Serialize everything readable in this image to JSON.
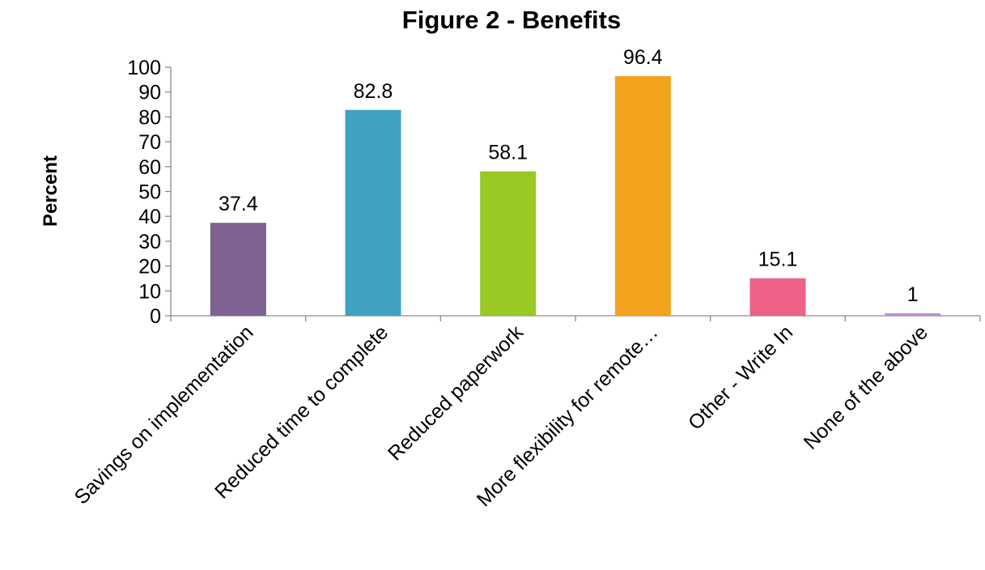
{
  "chart_data": {
    "type": "bar",
    "title": "Figure 2 - Benefits",
    "xlabel": "",
    "ylabel": "Percent",
    "ylim": [
      0,
      100
    ],
    "yticks": [
      0,
      10,
      20,
      30,
      40,
      50,
      60,
      70,
      80,
      90,
      100
    ],
    "grid": false,
    "categories": [
      "Savings on implementation",
      "Reduced time to complete",
      "Reduced paperwork",
      "More flexibility for remote…",
      "Other - Write In",
      "None of the above"
    ],
    "values": [
      37.4,
      82.8,
      58.1,
      96.4,
      15.1,
      1
    ],
    "value_labels": [
      "37.4",
      "82.8",
      "58.1",
      "96.4",
      "15.1",
      "1"
    ],
    "colors": [
      "#7e6291",
      "#3fa2c1",
      "#9ac825",
      "#f4a31f",
      "#ee6287",
      "#bb8fd6"
    ]
  }
}
